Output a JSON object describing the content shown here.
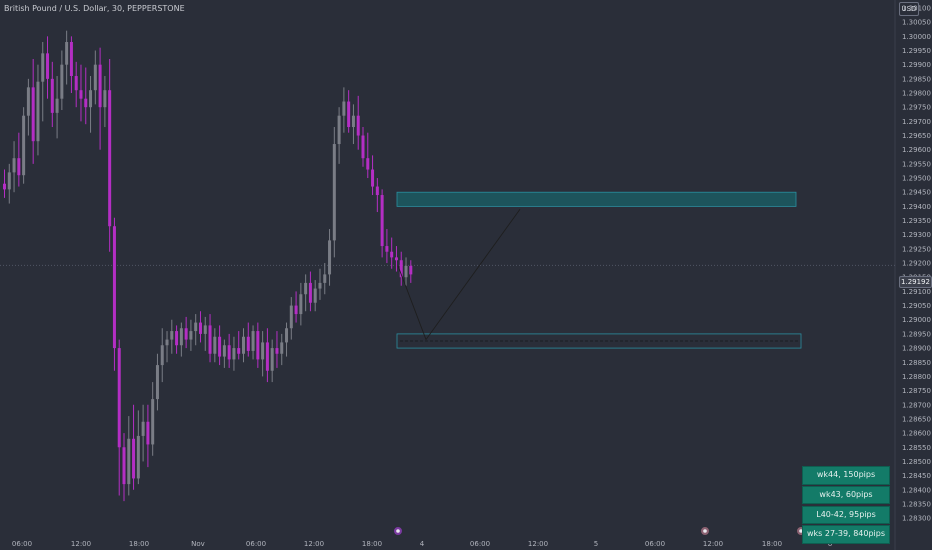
{
  "header": {
    "title": "British Pound / U.S. Dollar, 30, PEPPERSTONE",
    "currency": "USD"
  },
  "price_axis": {
    "labels": [
      "1.30100",
      "1.30050",
      "1.30000",
      "1.29950",
      "1.29900",
      "1.29850",
      "1.29800",
      "1.29750",
      "1.29700",
      "1.29650",
      "1.29600",
      "1.29550",
      "1.29500",
      "1.29450",
      "1.29400",
      "1.29350",
      "1.29300",
      "1.29250",
      "1.29200",
      "1.29150",
      "1.29100",
      "1.29050",
      "1.29000",
      "1.28950",
      "1.28900",
      "1.28850",
      "1.28800",
      "1.28750",
      "1.28700",
      "1.28650",
      "1.28600",
      "1.28550",
      "1.28500",
      "1.28450",
      "1.28400",
      "1.28350",
      "1.28300"
    ],
    "current_price": "1.29192"
  },
  "time_axis": {
    "labels": [
      "06:00",
      "12:00",
      "18:00",
      "Nov",
      "06:00",
      "12:00",
      "18:00",
      "4",
      "06:00",
      "12:00",
      "5",
      "06:00",
      "12:00",
      "18:00",
      "6"
    ]
  },
  "info_boxes": [
    {
      "label": "wk44, 150pips"
    },
    {
      "label": "wk43, 60pips"
    },
    {
      "label": "L40-42, 95pips"
    },
    {
      "label": "wks 27-39, 840pips"
    }
  ],
  "chart_data": {
    "type": "candlestick",
    "title": "British Pound / U.S. Dollar, 30, PEPPERSTONE",
    "symbol": "GBPUSD",
    "timeframe": "30",
    "source": "PEPPERSTONE",
    "currency": "USD",
    "ylim": [
      1.2828,
      1.3012
    ],
    "candles": [
      [
        1.2948,
        1.2953,
        1.2943,
        1.2946
      ],
      [
        1.2946,
        1.2955,
        1.2941,
        1.2952
      ],
      [
        1.2952,
        1.2963,
        1.2945,
        1.2957
      ],
      [
        1.2957,
        1.2966,
        1.2947,
        1.2951
      ],
      [
        1.2951,
        1.2975,
        1.2948,
        1.2972
      ],
      [
        1.2972,
        1.2985,
        1.2965,
        1.2982
      ],
      [
        1.2982,
        1.2992,
        1.2955,
        1.2963
      ],
      [
        1.2963,
        1.299,
        1.2958,
        1.2984
      ],
      [
        1.2984,
        1.2998,
        1.297,
        1.2994
      ],
      [
        1.2994,
        1.3,
        1.2978,
        1.2985
      ],
      [
        1.2985,
        1.2991,
        1.2968,
        1.2973
      ],
      [
        1.2973,
        1.2986,
        1.2964,
        1.2978
      ],
      [
        1.2978,
        1.2995,
        1.2974,
        1.299
      ],
      [
        1.299,
        1.3002,
        1.2983,
        1.2998
      ],
      [
        1.2998,
        1.3,
        1.298,
        1.2986
      ],
      [
        1.2986,
        1.2991,
        1.2975,
        1.2981
      ],
      [
        1.2981,
        1.299,
        1.297,
        1.2978
      ],
      [
        1.2978,
        1.2989,
        1.2969,
        1.2975
      ],
      [
        1.2975,
        1.2986,
        1.2966,
        1.2981
      ],
      [
        1.2981,
        1.2995,
        1.2976,
        1.299
      ],
      [
        1.299,
        1.2996,
        1.296,
        1.2975
      ],
      [
        1.2975,
        1.2986,
        1.2968,
        1.2981
      ],
      [
        1.2981,
        1.2992,
        1.2924,
        1.2933
      ],
      [
        1.2933,
        1.2936,
        1.2882,
        1.289
      ],
      [
        1.289,
        1.2893,
        1.2838,
        1.2855
      ],
      [
        1.2855,
        1.286,
        1.2836,
        1.2842
      ],
      [
        1.2842,
        1.2866,
        1.2838,
        1.2858
      ],
      [
        1.2858,
        1.287,
        1.284,
        1.2844
      ],
      [
        1.2844,
        1.2868,
        1.2842,
        1.2859
      ],
      [
        1.2859,
        1.287,
        1.285,
        1.2864
      ],
      [
        1.2864,
        1.287,
        1.2848,
        1.2856
      ],
      [
        1.2856,
        1.2878,
        1.2852,
        1.2872
      ],
      [
        1.2872,
        1.2888,
        1.2868,
        1.2884
      ],
      [
        1.2884,
        1.2897,
        1.2878,
        1.2891
      ],
      [
        1.2891,
        1.2896,
        1.2885,
        1.2893
      ],
      [
        1.2893,
        1.29,
        1.2888,
        1.2896
      ],
      [
        1.2896,
        1.2898,
        1.2888,
        1.2891
      ],
      [
        1.2891,
        1.2899,
        1.2887,
        1.2897
      ],
      [
        1.2897,
        1.2901,
        1.289,
        1.2893
      ],
      [
        1.2893,
        1.29,
        1.2889,
        1.2896
      ],
      [
        1.2896,
        1.2902,
        1.2891,
        1.2899
      ],
      [
        1.2899,
        1.2903,
        1.2892,
        1.2895
      ],
      [
        1.2895,
        1.2901,
        1.2889,
        1.2898
      ],
      [
        1.2898,
        1.2902,
        1.2885,
        1.2888
      ],
      [
        1.2888,
        1.2897,
        1.2885,
        1.2894
      ],
      [
        1.2894,
        1.2898,
        1.2884,
        1.2887
      ],
      [
        1.2887,
        1.2893,
        1.2883,
        1.2891
      ],
      [
        1.2891,
        1.2895,
        1.2883,
        1.2886
      ],
      [
        1.2886,
        1.2894,
        1.2882,
        1.289
      ],
      [
        1.289,
        1.2896,
        1.2886,
        1.2888
      ],
      [
        1.2888,
        1.2897,
        1.2885,
        1.2894
      ],
      [
        1.2894,
        1.2899,
        1.2887,
        1.2889
      ],
      [
        1.2889,
        1.2898,
        1.2886,
        1.2896
      ],
      [
        1.2896,
        1.2899,
        1.2883,
        1.2886
      ],
      [
        1.2886,
        1.2896,
        1.288,
        1.2892
      ],
      [
        1.2892,
        1.2897,
        1.2878,
        1.2882
      ],
      [
        1.2882,
        1.2893,
        1.2878,
        1.289
      ],
      [
        1.289,
        1.2896,
        1.2883,
        1.2888
      ],
      [
        1.2888,
        1.2895,
        1.2884,
        1.2892
      ],
      [
        1.2892,
        1.2899,
        1.2887,
        1.2897
      ],
      [
        1.2897,
        1.2908,
        1.2893,
        1.2905
      ],
      [
        1.2905,
        1.291,
        1.2899,
        1.2902
      ],
      [
        1.2902,
        1.2913,
        1.2898,
        1.2909
      ],
      [
        1.2909,
        1.2916,
        1.2903,
        1.2913
      ],
      [
        1.2913,
        1.2917,
        1.2903,
        1.2906
      ],
      [
        1.2906,
        1.2914,
        1.2903,
        1.2911
      ],
      [
        1.2911,
        1.2918,
        1.2907,
        1.2913
      ],
      [
        1.2913,
        1.292,
        1.2909,
        1.2916
      ],
      [
        1.2916,
        1.2932,
        1.2912,
        1.2928
      ],
      [
        1.2928,
        1.2968,
        1.2922,
        1.2962
      ],
      [
        1.2962,
        1.2975,
        1.2955,
        1.2972
      ],
      [
        1.2972,
        1.2982,
        1.2966,
        1.2977
      ],
      [
        1.2977,
        1.2981,
        1.2966,
        1.2968
      ],
      [
        1.2968,
        1.2976,
        1.2962,
        1.2972
      ],
      [
        1.2972,
        1.2979,
        1.296,
        1.2965
      ],
      [
        1.2965,
        1.2968,
        1.2954,
        1.2957
      ],
      [
        1.2957,
        1.2966,
        1.295,
        1.2953
      ],
      [
        1.2953,
        1.2958,
        1.2944,
        1.2947
      ],
      [
        1.2947,
        1.295,
        1.2938,
        1.2944
      ],
      [
        1.2944,
        1.2946,
        1.2922,
        1.2926
      ],
      [
        1.2926,
        1.2932,
        1.292,
        1.2924
      ],
      [
        1.2924,
        1.2929,
        1.2918,
        1.2922
      ],
      [
        1.2922,
        1.2926,
        1.2917,
        1.2921
      ],
      [
        1.2921,
        1.2924,
        1.2912,
        1.2915
      ],
      [
        1.2915,
        1.2922,
        1.2912,
        1.2919
      ],
      [
        1.2919,
        1.2921,
        1.2913,
        1.2916
      ]
    ],
    "current_price": 1.29192,
    "zones": [
      {
        "type": "supply",
        "from": 1.294,
        "to": 1.2945
      },
      {
        "type": "target",
        "from": 1.289,
        "to": 1.2895,
        "mid": 1.28925
      }
    ],
    "projection": [
      [
        1.2916,
        1.2919
      ],
      [
        1.2893,
        1.2893
      ],
      [
        1.2938,
        1.2939
      ]
    ],
    "x_ticks": [
      "06:00",
      "12:00",
      "18:00",
      "Nov",
      "06:00",
      "12:00",
      "18:00",
      "4",
      "06:00",
      "12:00",
      "5",
      "06:00",
      "12:00",
      "18:00",
      "6"
    ],
    "colors": {
      "background": "#2a2e39",
      "up": "#7a7d86",
      "down": "#b42ec4",
      "zone_fill": "#1d545c",
      "zone_border": "#2a8fa0",
      "arrow": "#1e1e1e"
    }
  }
}
